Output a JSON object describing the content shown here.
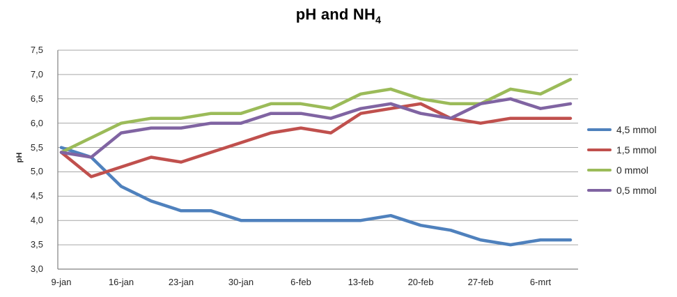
{
  "title": {
    "main": "pH and NH",
    "subscript": "4"
  },
  "chart_data": {
    "type": "line",
    "title": "pH and NH4",
    "xlabel": "",
    "ylabel": "pH",
    "ylim": [
      3.0,
      7.5
    ],
    "y_tick_step": 0.5,
    "grid": true,
    "legend_position": "right",
    "y_tick_labels": [
      "7,5",
      "7,0",
      "6,5",
      "6,0",
      "5,5",
      "5,0",
      "4,5",
      "4,0",
      "3,5",
      "3,0"
    ],
    "x_tick_labels": [
      "9-jan",
      "16-jan",
      "23-jan",
      "30-jan",
      "6-feb",
      "13-feb",
      "20-feb",
      "27-feb",
      "6-mrt"
    ],
    "points_per_tick": 2,
    "points_per_series": 18,
    "series": [
      {
        "name": "4,5 mmol",
        "color": "#4f81bd",
        "values": [
          5.5,
          5.3,
          4.7,
          4.4,
          4.2,
          4.2,
          4.0,
          4.0,
          4.0,
          4.0,
          4.0,
          4.1,
          3.9,
          3.8,
          3.6,
          3.5,
          3.6,
          3.6
        ]
      },
      {
        "name": "1,5 mmol",
        "color": "#c0504d",
        "values": [
          5.4,
          4.9,
          5.1,
          5.3,
          5.2,
          5.4,
          5.6,
          5.8,
          5.9,
          5.8,
          6.2,
          6.3,
          6.4,
          6.1,
          6.0,
          6.1,
          6.1,
          6.1
        ]
      },
      {
        "name": "0 mmol",
        "color": "#9bbb59",
        "values": [
          5.4,
          5.7,
          6.0,
          6.1,
          6.1,
          6.2,
          6.2,
          6.4,
          6.4,
          6.3,
          6.6,
          6.7,
          6.5,
          6.4,
          6.4,
          6.7,
          6.6,
          6.9
        ]
      },
      {
        "name": "0,5 mmol",
        "color": "#8064a2",
        "values": [
          5.4,
          5.3,
          5.8,
          5.9,
          5.9,
          6.0,
          6.0,
          6.2,
          6.2,
          6.1,
          6.3,
          6.4,
          6.2,
          6.1,
          6.4,
          6.5,
          6.3,
          6.4
        ]
      }
    ],
    "gridline_color": "#a6a6a6",
    "axis_color": "#808080"
  }
}
